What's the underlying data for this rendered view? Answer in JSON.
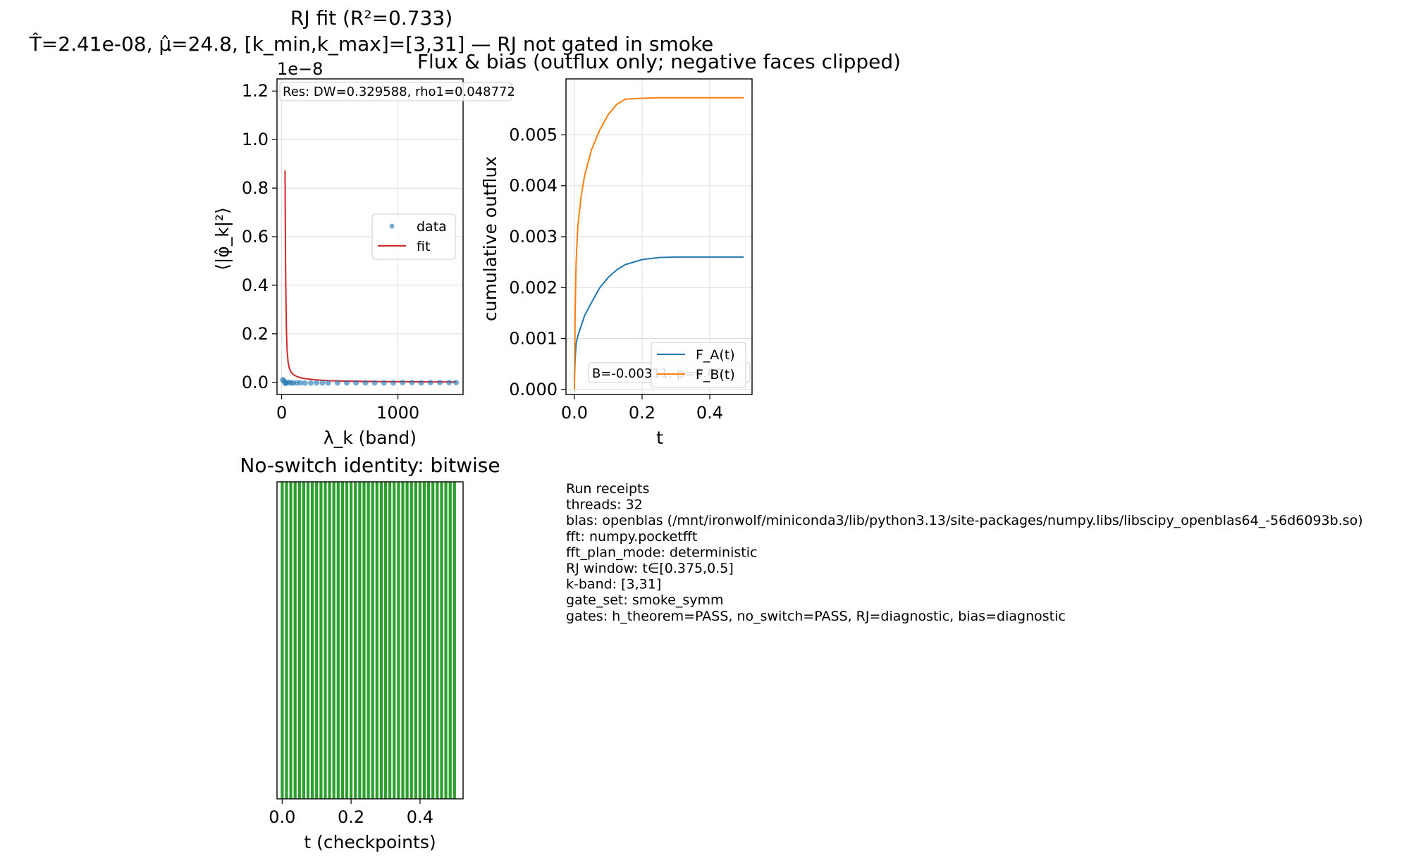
{
  "chart_data": [
    {
      "type": "scatter",
      "title": "RJ fit (R²=0.733)",
      "subtitle": "T̂=2.41e-08, μ̂=24.8, [k_min,k_max]=[3,31] — RJ not gated in smoke",
      "xlabel": "λ_k (band)",
      "ylabel": "⟨|φ̂_k|²⟩",
      "y_offset_label": "1e−8",
      "xlim": [
        -40,
        1560
      ],
      "ylim": [
        -0.05,
        1.25
      ],
      "y_scale": 1e-08,
      "xticks": [
        0,
        1000
      ],
      "xtick_labels": [
        "0",
        "1000"
      ],
      "yticks": [
        0.0,
        0.2,
        0.4,
        0.6,
        0.8,
        1.0,
        1.2
      ],
      "ytick_labels": [
        "0.0",
        "0.2",
        "0.4",
        "0.6",
        "0.8",
        "1.0",
        "1.2"
      ],
      "grid": true,
      "legend_position": "right",
      "annotation": "Res: DW=0.329588, rho1=0.048772",
      "series": [
        {
          "name": "data",
          "kind": "scatter",
          "color": "#1f77b4",
          "x": [
            10,
            20,
            30,
            40,
            60,
            80,
            100,
            130,
            160,
            200,
            250,
            300,
            350,
            400,
            480,
            560,
            640,
            720,
            800,
            880,
            960,
            1040,
            1120,
            1200,
            1280,
            1360,
            1440,
            1500
          ],
          "y": [
            0.01,
            0.006,
            -0.004,
            -0.003,
            0.0,
            -0.002,
            -0.003,
            -0.002,
            -0.002,
            -0.003,
            -0.003,
            -0.002,
            -0.002,
            -0.002,
            -0.002,
            -0.002,
            -0.002,
            -0.002,
            -0.002,
            -0.002,
            -0.002,
            -0.001,
            -0.001,
            -0.002,
            -0.001,
            -0.001,
            -0.001,
            -0.001
          ]
        },
        {
          "name": "fit",
          "kind": "line",
          "color": "#d62728",
          "x": [
            29,
            31,
            33,
            35,
            38,
            42,
            48,
            55,
            65,
            80,
            100,
            130,
            170,
            220,
            300,
            400,
            500,
            700,
            900,
            1100,
            1300,
            1500
          ],
          "y": [
            0.873,
            0.71,
            0.55,
            0.42,
            0.3,
            0.2,
            0.125,
            0.085,
            0.06,
            0.043,
            0.032,
            0.024,
            0.018,
            0.014,
            0.01,
            0.007,
            0.0055,
            0.004,
            0.003,
            0.0025,
            0.002,
            0.0017
          ]
        }
      ]
    },
    {
      "type": "line",
      "title": "Flux & bias (outflux only; negative faces clipped)",
      "xlabel": "t",
      "ylabel": "cumulative outflux",
      "xlim": [
        -0.025,
        0.525
      ],
      "ylim": [
        -0.0001,
        0.0061
      ],
      "xticks": [
        0.0,
        0.2,
        0.4
      ],
      "xtick_labels": [
        "0.0",
        "0.2",
        "0.4"
      ],
      "yticks": [
        0.0,
        0.001,
        0.002,
        0.003,
        0.004,
        0.005
      ],
      "ytick_labels": [
        "0.000",
        "0.001",
        "0.002",
        "0.003",
        "0.004",
        "0.005"
      ],
      "grid": true,
      "legend_position": "lower right",
      "annotation": "B=-0.00311, p=0.03",
      "series": [
        {
          "name": "F_A(t)",
          "color": "#1f77b4",
          "x": [
            0.0,
            0.002,
            0.005,
            0.01,
            0.02,
            0.03,
            0.05,
            0.075,
            0.1,
            0.125,
            0.15,
            0.2,
            0.25,
            0.3,
            0.35,
            0.4,
            0.45,
            0.5
          ],
          "y": [
            0.0002,
            0.0006,
            0.0009,
            0.00105,
            0.00125,
            0.00145,
            0.0017,
            0.002,
            0.0022,
            0.00235,
            0.00245,
            0.00255,
            0.00259,
            0.0026,
            0.0026,
            0.0026,
            0.0026,
            0.0026
          ]
        },
        {
          "name": "F_B(t)",
          "color": "#ff7f0e",
          "x": [
            0.0,
            0.002,
            0.005,
            0.01,
            0.02,
            0.03,
            0.05,
            0.075,
            0.1,
            0.125,
            0.15,
            0.2,
            0.25,
            0.3,
            0.35,
            0.4,
            0.45,
            0.5
          ],
          "y": [
            0.0,
            0.0015,
            0.0025,
            0.0032,
            0.0038,
            0.0042,
            0.0047,
            0.0051,
            0.0054,
            0.0056,
            0.0057,
            0.00572,
            0.00573,
            0.00573,
            0.00573,
            0.00573,
            0.00573,
            0.00573
          ]
        }
      ]
    },
    {
      "type": "bar",
      "title": "No-switch identity: bitwise",
      "xlabel": "t (checkpoints)",
      "ylabel": "",
      "xlim": [
        -0.015,
        0.525
      ],
      "ylim": [
        0,
        1
      ],
      "xticks": [
        0.0,
        0.2,
        0.4
      ],
      "xtick_labels": [
        "0.0",
        "0.2",
        "0.4"
      ],
      "grid": false,
      "bar_color": "#2ca02c",
      "bar_width": 0.0085,
      "x": [
        0.0,
        0.0125,
        0.025,
        0.0375,
        0.05,
        0.0625,
        0.075,
        0.0875,
        0.1,
        0.1125,
        0.125,
        0.1375,
        0.15,
        0.1625,
        0.175,
        0.1875,
        0.2,
        0.2125,
        0.225,
        0.2375,
        0.25,
        0.2625,
        0.275,
        0.2875,
        0.3,
        0.3125,
        0.325,
        0.3375,
        0.35,
        0.3625,
        0.375,
        0.3875,
        0.4,
        0.4125,
        0.425,
        0.4375,
        0.45,
        0.4625,
        0.475,
        0.4875,
        0.5
      ],
      "values": [
        1,
        1,
        1,
        1,
        1,
        1,
        1,
        1,
        1,
        1,
        1,
        1,
        1,
        1,
        1,
        1,
        1,
        1,
        1,
        1,
        1,
        1,
        1,
        1,
        1,
        1,
        1,
        1,
        1,
        1,
        1,
        1,
        1,
        1,
        1,
        1,
        1,
        1,
        1,
        1,
        1
      ]
    }
  ],
  "receipts": {
    "lines": [
      "Run receipts",
      "threads: 32",
      "blas: openblas (/mnt/ironwolf/miniconda3/lib/python3.13/site-packages/numpy.libs/libscipy_openblas64_-56d6093b.so)",
      "fft: numpy.pocketfft",
      "fft_plan_mode: deterministic",
      "RJ window: t∈[0.375,0.5]",
      "k-band: [3,31]",
      "gate_set: smoke_symm",
      "gates: h_theorem=PASS, no_switch=PASS, RJ=diagnostic, bias=diagnostic"
    ]
  }
}
